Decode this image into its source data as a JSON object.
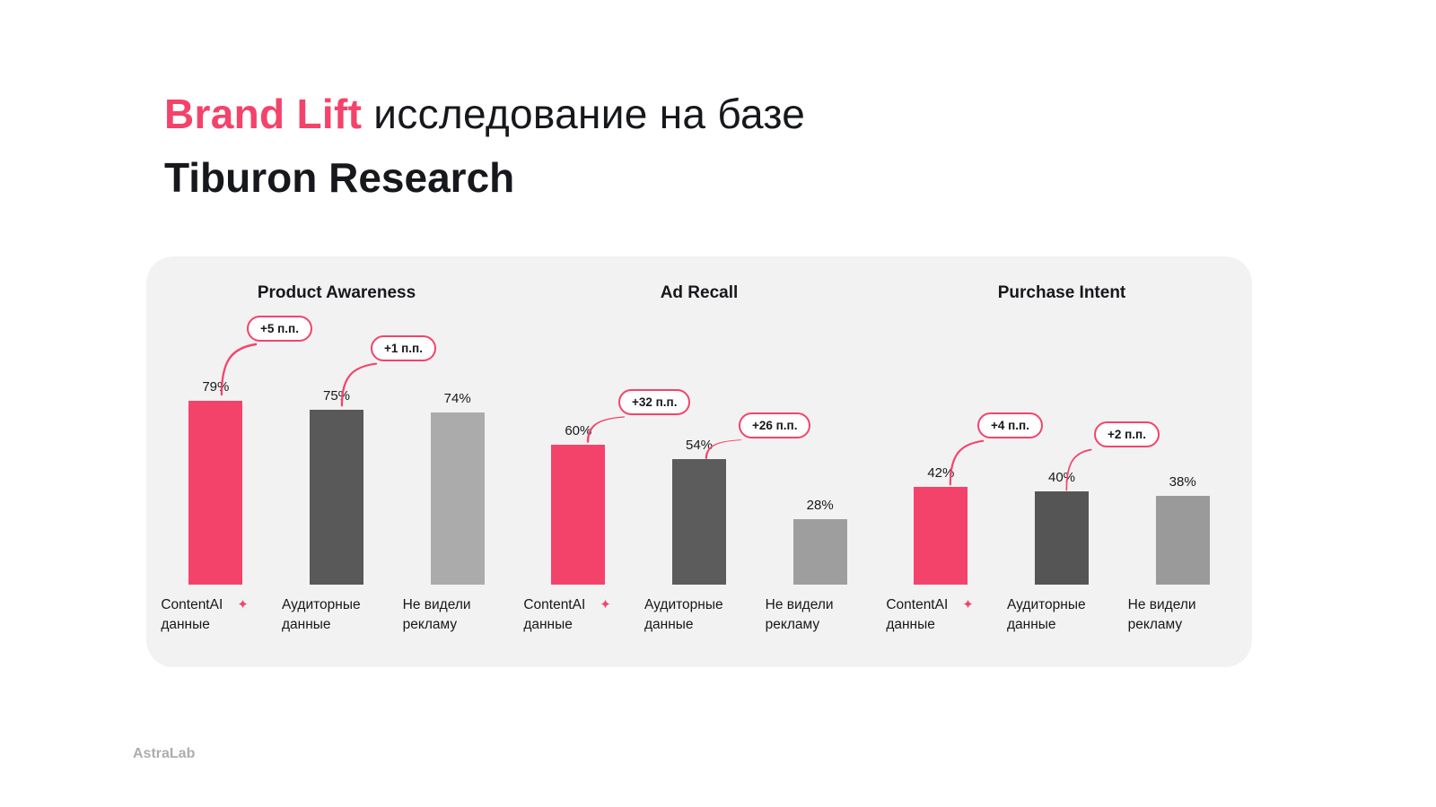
{
  "slide": {
    "title_highlight": "Brand Lift",
    "title_rest": "исследование на базе",
    "title_line2": "Tiburon Research",
    "footer_brand": "AstraLab"
  },
  "colors": {
    "accent": "#F4436B",
    "panel_bg": "#F2F2F2",
    "footer_text": "#ADADAD"
  },
  "chart_data": [
    {
      "type": "bar",
      "title": "Product Awareness",
      "unit": "%",
      "ylim": [
        0,
        100
      ],
      "categories": [
        "ContentAI данные",
        "Аудиторные данные",
        "Не видели рекламу"
      ],
      "x_labels": [
        [
          "ContentAI",
          "данные"
        ],
        [
          "Аудиторные",
          "данные"
        ],
        [
          "Не видели",
          "рекламу"
        ]
      ],
      "values": [
        79,
        75,
        74
      ],
      "value_labels": [
        "79%",
        "75%",
        "74%"
      ],
      "bar_colors": [
        "#F4436B",
        "#595959",
        "#ABABAB"
      ],
      "badges": [
        {
          "label": "+5 п.п.",
          "bar": "ContentAI данные"
        },
        {
          "label": "+1 п.п.",
          "bar": "Аудиторные данные"
        }
      ]
    },
    {
      "type": "bar",
      "title": "Ad Recall",
      "unit": "%",
      "ylim": [
        0,
        100
      ],
      "categories": [
        "ContentAI данные",
        "Аудиторные данные",
        "Не видели рекламу"
      ],
      "x_labels": [
        [
          "ContentAI",
          "данные"
        ],
        [
          "Аудиторные",
          "данные"
        ],
        [
          "Не видели",
          "рекламу"
        ]
      ],
      "values": [
        60,
        54,
        28
      ],
      "value_labels": [
        "60%",
        "54%",
        "28%"
      ],
      "bar_colors": [
        "#F4436B",
        "#5C5C5C",
        "#9E9E9E"
      ],
      "badges": [
        {
          "label": "+32 п.п.",
          "bar": "ContentAI данные"
        },
        {
          "label": "+26 п.п.",
          "bar": "Аудиторные данные"
        }
      ]
    },
    {
      "type": "bar",
      "title": "Purchase Intent",
      "unit": "%",
      "ylim": [
        0,
        100
      ],
      "categories": [
        "ContentAI данные",
        "Аудиторные данные",
        "Не видели рекламу"
      ],
      "x_labels": [
        [
          "ContentAI",
          "данные"
        ],
        [
          "Аудиторные",
          "данные"
        ],
        [
          "Не видели",
          "рекламу"
        ]
      ],
      "values": [
        42,
        40,
        38
      ],
      "value_labels": [
        "42%",
        "40%",
        "38%"
      ],
      "bar_colors": [
        "#F4436B",
        "#555555",
        "#9A9A9A"
      ],
      "badges": [
        {
          "label": "+4 п.п.",
          "bar": "ContentAI данные"
        },
        {
          "label": "+2 п.п.",
          "bar": "Аудиторные данные"
        }
      ]
    }
  ]
}
